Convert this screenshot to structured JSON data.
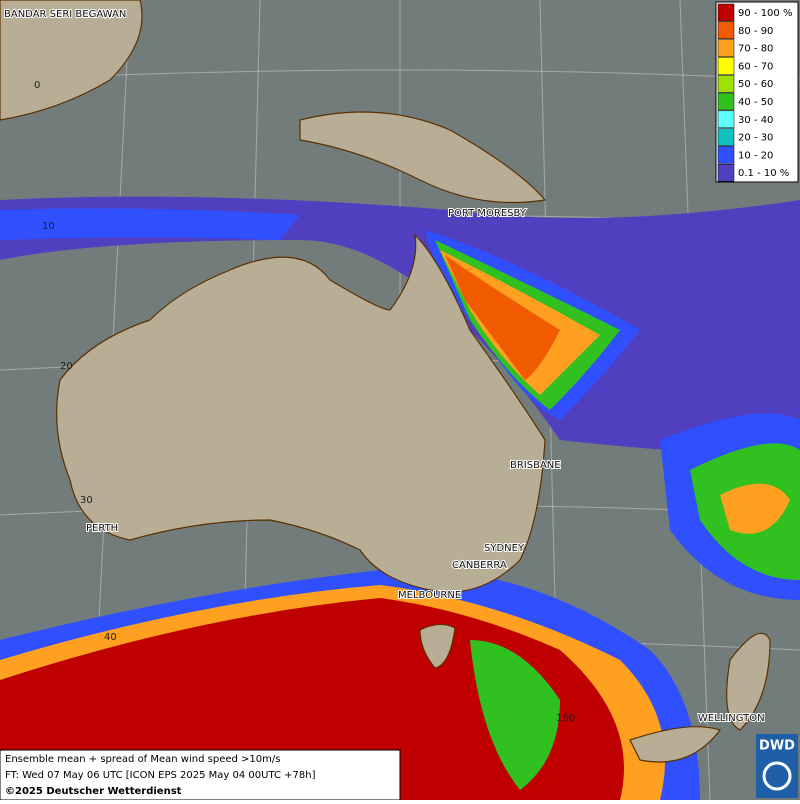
{
  "map": {
    "places": [
      "BANDAR SERI BEGAWAN",
      "PORT MORESBY",
      "BRISBANE",
      "SYDNEY",
      "CANBERRA",
      "MELBOURNE",
      "PERTH",
      "WELLINGTON"
    ],
    "grid_labels": [
      "0",
      "10",
      "20",
      "30",
      "40",
      "160"
    ],
    "legend": [
      {
        "label": "90 - 100 %",
        "color": "#c00000"
      },
      {
        "label": "80 - 90",
        "color": "#f05a00"
      },
      {
        "label": "70 - 80",
        "color": "#ffa020"
      },
      {
        "label": "60 - 70",
        "color": "#ffff00"
      },
      {
        "label": "50 - 60",
        "color": "#a0e000"
      },
      {
        "label": "40 - 50",
        "color": "#30c020"
      },
      {
        "label": "30 - 40",
        "color": "#60ffff"
      },
      {
        "label": "20 - 30",
        "color": "#10c0c0"
      },
      {
        "label": "10 - 20",
        "color": "#3050ff"
      },
      {
        "label": "0.1 - 10 %",
        "color": "#5040c0"
      }
    ],
    "caption": [
      "Ensemble mean + spread of Mean wind speed >10m/s",
      "FT: Wed 07 May 06 UTC [ICON EPS 2025 May 04 00UTC +78h]",
      "©2025 Deutscher Wetterdienst"
    ],
    "logo": "DWD"
  }
}
